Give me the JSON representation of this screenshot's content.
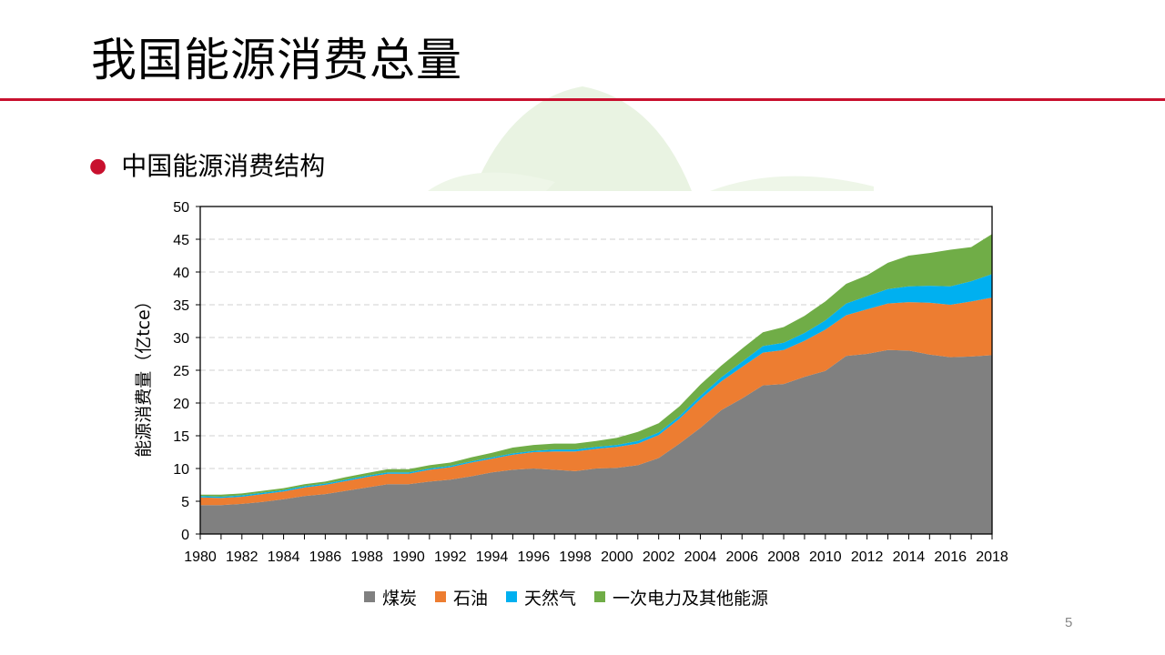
{
  "slide": {
    "title": "我国能源消费总量",
    "bullet": "中国能源消费结构",
    "page_number": "5"
  },
  "colors": {
    "accent_red": "#c8102e",
    "coal": "#808080",
    "oil": "#ed7d31",
    "gas": "#00b0f0",
    "other": "#70ad47"
  },
  "chart_data": {
    "type": "area",
    "stacked": true,
    "title": "",
    "xlabel": "",
    "ylabel": "能源消费量（亿tce）",
    "ylim": [
      0,
      50
    ],
    "yticks": [
      "0",
      "5",
      "10",
      "15",
      "20",
      "25",
      "30",
      "35",
      "40",
      "45",
      "50"
    ],
    "xlim": [
      1980,
      2018
    ],
    "xticks": [
      "1980",
      "1982",
      "1984",
      "1986",
      "1988",
      "1990",
      "1992",
      "1994",
      "1996",
      "1998",
      "2000",
      "2002",
      "2004",
      "2006",
      "2008",
      "2010",
      "2012",
      "2014",
      "2016",
      "2018"
    ],
    "grid": "horizontal-dashed",
    "legend": "bottom",
    "x": [
      1980,
      1981,
      1982,
      1983,
      1984,
      1985,
      1986,
      1987,
      1988,
      1989,
      1990,
      1991,
      1992,
      1993,
      1994,
      1995,
      1996,
      1997,
      1998,
      1999,
      2000,
      2001,
      2002,
      2003,
      2004,
      2005,
      2006,
      2007,
      2008,
      2009,
      2010,
      2011,
      2012,
      2013,
      2014,
      2015,
      2016,
      2017,
      2018
    ],
    "series": [
      {
        "name": "煤炭",
        "color_key": "coal",
        "values": [
          4.4,
          4.4,
          4.6,
          4.9,
          5.3,
          5.8,
          6.1,
          6.6,
          7.1,
          7.6,
          7.6,
          8.0,
          8.3,
          8.8,
          9.4,
          9.8,
          10.0,
          9.8,
          9.6,
          10.0,
          10.1,
          10.5,
          11.6,
          13.8,
          16.2,
          18.9,
          20.7,
          22.7,
          22.9,
          24.0,
          24.9,
          27.2,
          27.5,
          28.1,
          28.0,
          27.4,
          27.0,
          27.1,
          27.3
        ]
      },
      {
        "name": "石油",
        "color_key": "oil",
        "values": [
          1.2,
          1.1,
          1.1,
          1.2,
          1.2,
          1.3,
          1.4,
          1.5,
          1.6,
          1.6,
          1.6,
          1.8,
          1.9,
          2.1,
          2.1,
          2.3,
          2.5,
          2.8,
          3.0,
          3.0,
          3.2,
          3.3,
          3.5,
          3.8,
          4.4,
          4.4,
          4.8,
          5.0,
          5.2,
          5.5,
          6.3,
          6.2,
          6.8,
          7.1,
          7.4,
          7.9,
          8.0,
          8.4,
          8.8
        ]
      },
      {
        "name": "天然气",
        "color_key": "gas",
        "values": [
          0.2,
          0.2,
          0.2,
          0.2,
          0.2,
          0.2,
          0.2,
          0.2,
          0.2,
          0.2,
          0.2,
          0.2,
          0.2,
          0.2,
          0.2,
          0.2,
          0.2,
          0.3,
          0.3,
          0.3,
          0.3,
          0.4,
          0.4,
          0.4,
          0.5,
          0.6,
          0.8,
          1.0,
          1.1,
          1.2,
          1.4,
          1.8,
          2.0,
          2.2,
          2.4,
          2.6,
          2.8,
          3.1,
          3.6
        ]
      },
      {
        "name": "一次电力及其他能源",
        "color_key": "other",
        "values": [
          0.2,
          0.3,
          0.3,
          0.3,
          0.3,
          0.3,
          0.3,
          0.4,
          0.4,
          0.5,
          0.5,
          0.5,
          0.5,
          0.6,
          0.7,
          0.9,
          0.9,
          0.9,
          0.9,
          0.9,
          1.1,
          1.4,
          1.4,
          1.5,
          1.7,
          1.8,
          2.0,
          2.1,
          2.4,
          2.6,
          2.9,
          3.0,
          3.2,
          4.0,
          4.7,
          5.0,
          5.6,
          5.2,
          6.1
        ]
      }
    ]
  }
}
